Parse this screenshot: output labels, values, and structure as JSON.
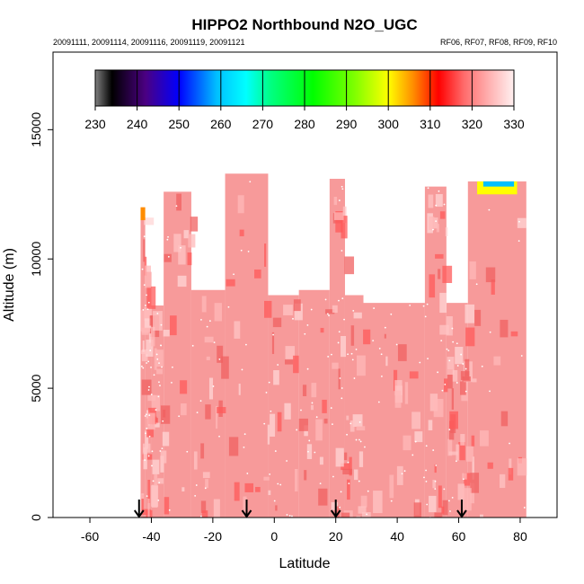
{
  "chart_data": {
    "type": "heatmap",
    "title": "HIPPO2 Northbound N2O_UGC",
    "subtitle_left": "20091111, 20091114, 20091116, 20091119, 20091121",
    "subtitle_right": "RF06, RF07, RF08, RF09, RF10",
    "xlabel": "Latitude",
    "ylabel": "Altitude (m)",
    "xlim": [
      -72,
      92
    ],
    "ylim": [
      0,
      18000
    ],
    "x_ticks": [
      -60,
      -40,
      -20,
      0,
      20,
      40,
      60,
      80
    ],
    "x_tick_labels": [
      "-60",
      "-40",
      "-20",
      "0",
      "20",
      "40",
      "60",
      "80"
    ],
    "y_ticks": [
      0,
      5000,
      10000,
      15000
    ],
    "y_tick_labels": [
      "0",
      "5000",
      "10000",
      "15000"
    ],
    "colorbar": {
      "range": [
        230,
        330
      ],
      "ticks": [
        230,
        240,
        250,
        260,
        270,
        280,
        290,
        300,
        310,
        320,
        330
      ],
      "tick_labels": [
        "230",
        "240",
        "250",
        "260",
        "270",
        "280",
        "290",
        "300",
        "310",
        "320",
        "330"
      ],
      "stops": [
        {
          "value": 230,
          "color": "#808080"
        },
        {
          "value": 234,
          "color": "#000000"
        },
        {
          "value": 242,
          "color": "#4b0082"
        },
        {
          "value": 250,
          "color": "#0000ff"
        },
        {
          "value": 259,
          "color": "#00bfff"
        },
        {
          "value": 266,
          "color": "#00ffff"
        },
        {
          "value": 272,
          "color": "#00ff80"
        },
        {
          "value": 282,
          "color": "#00ff00"
        },
        {
          "value": 292,
          "color": "#80ff00"
        },
        {
          "value": 300,
          "color": "#ffff00"
        },
        {
          "value": 306,
          "color": "#ff8c00"
        },
        {
          "value": 312,
          "color": "#ff0000"
        },
        {
          "value": 318,
          "color": "#ff6a6a"
        },
        {
          "value": 324,
          "color": "#ffb0b0"
        },
        {
          "value": 330,
          "color": "#fff0f0"
        }
      ]
    },
    "legend_placement": "top",
    "grid": false,
    "flight_markers_lat": [
      -44,
      -9,
      20,
      61
    ],
    "bulk_color": "#f79a9a",
    "field_columns": [
      {
        "lat0": -43.5,
        "lat1": -42,
        "top": 11600
      },
      {
        "lat0": -42,
        "lat1": -40,
        "top": 9500
      },
      {
        "lat0": -40,
        "lat1": -36,
        "top": 8200
      },
      {
        "lat0": -36,
        "lat1": -27,
        "top": 12600
      },
      {
        "lat0": -27,
        "lat1": -16,
        "top": 8800
      },
      {
        "lat0": -16,
        "lat1": -2,
        "top": 13300
      },
      {
        "lat0": -2,
        "lat1": 8,
        "top": 8600
      },
      {
        "lat0": 8,
        "lat1": 18,
        "top": 8800
      },
      {
        "lat0": 18,
        "lat1": 23,
        "top": 13100
      },
      {
        "lat0": 23,
        "lat1": 29,
        "top": 8600
      },
      {
        "lat0": 29,
        "lat1": 49,
        "top": 8300
      },
      {
        "lat0": 49,
        "lat1": 56,
        "top": 12800
      },
      {
        "lat0": 56,
        "lat1": 63,
        "top": 8300
      },
      {
        "lat0": 63,
        "lat1": 82,
        "top": 13000
      }
    ]
  }
}
